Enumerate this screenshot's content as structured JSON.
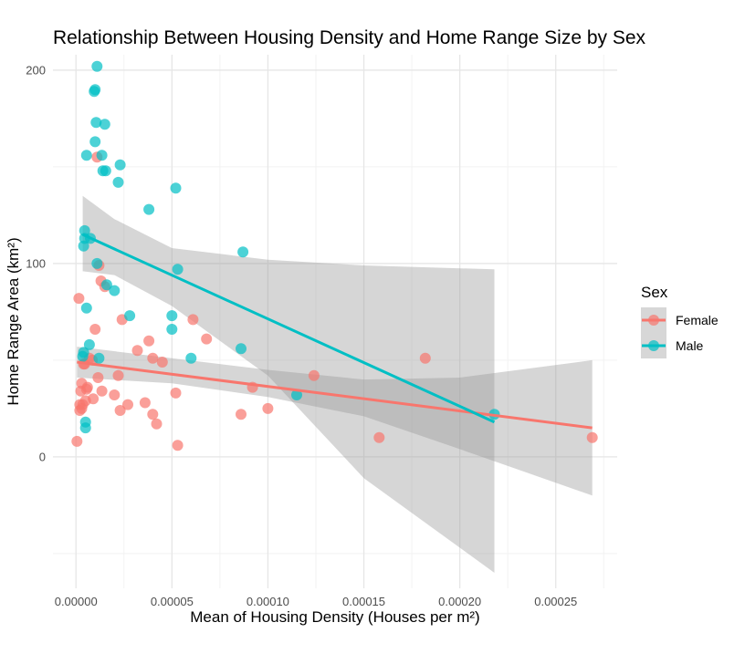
{
  "chart_data": {
    "type": "scatter",
    "title": "Relationship Between Housing Density and Home Range Size by Sex",
    "xlabel": "Mean of Housing Density (Houses per m²)",
    "ylabel": "Home Range Area (km²)",
    "xlim": [
      -1.2e-05,
      0.000282
    ],
    "ylim": [
      -68,
      208
    ],
    "x_ticks": [
      0,
      5e-05,
      0.0001,
      0.00015,
      0.0002,
      0.00025
    ],
    "x_tick_labels": [
      "0.00000",
      "0.00005",
      "0.00010",
      "0.00015",
      "0.00020",
      "0.00025"
    ],
    "y_ticks": [
      0,
      100,
      200
    ],
    "y_tick_labels": [
      "0",
      "100",
      "200"
    ],
    "grid": true,
    "legend": {
      "title": "Sex",
      "position": "right"
    },
    "series": [
      {
        "name": "Female",
        "color": "#F8766D",
        "points": [
          [
            5e-07,
            8
          ],
          [
            1.5e-06,
            82
          ],
          [
            2e-06,
            27
          ],
          [
            2e-06,
            24
          ],
          [
            2.5e-06,
            34
          ],
          [
            3e-06,
            38
          ],
          [
            3e-06,
            25
          ],
          [
            3.5e-06,
            27
          ],
          [
            4e-06,
            48
          ],
          [
            4.5e-06,
            48
          ],
          [
            5e-06,
            29
          ],
          [
            5.5e-06,
            35
          ],
          [
            6e-06,
            36
          ],
          [
            7e-06,
            51
          ],
          [
            8.5e-06,
            50
          ],
          [
            9e-06,
            30
          ],
          [
            1e-05,
            66
          ],
          [
            1.1e-05,
            155
          ],
          [
            1.15e-05,
            41
          ],
          [
            1.2e-05,
            99
          ],
          [
            1.3e-05,
            91
          ],
          [
            1.35e-05,
            34
          ],
          [
            1.5e-05,
            88
          ],
          [
            2e-05,
            32
          ],
          [
            2.2e-05,
            42
          ],
          [
            2.3e-05,
            24
          ],
          [
            2.4e-05,
            71
          ],
          [
            2.7e-05,
            27
          ],
          [
            3.2e-05,
            55
          ],
          [
            3.6e-05,
            28
          ],
          [
            3.8e-05,
            60
          ],
          [
            4e-05,
            22
          ],
          [
            4e-05,
            51
          ],
          [
            4.2e-05,
            17
          ],
          [
            4.5e-05,
            49
          ],
          [
            5.2e-05,
            33
          ],
          [
            5.3e-05,
            6
          ],
          [
            6.1e-05,
            71
          ],
          [
            6.8e-05,
            61
          ],
          [
            8.6e-05,
            22
          ],
          [
            9.2e-05,
            36
          ],
          [
            0.0001,
            25
          ],
          [
            0.000124,
            42
          ],
          [
            0.000158,
            10
          ],
          [
            0.000182,
            51
          ],
          [
            0.000269,
            10
          ]
        ]
      },
      {
        "name": "Male",
        "color": "#00BFC4",
        "points": [
          [
            3.5e-06,
            52
          ],
          [
            4e-06,
            54
          ],
          [
            4e-06,
            109
          ],
          [
            4.5e-06,
            117
          ],
          [
            4.5e-06,
            113
          ],
          [
            5e-06,
            18
          ],
          [
            5e-06,
            15
          ],
          [
            5.5e-06,
            77
          ],
          [
            5.5e-06,
            156
          ],
          [
            7e-06,
            58
          ],
          [
            7.5e-06,
            113
          ],
          [
            9.5e-06,
            189
          ],
          [
            1e-05,
            190
          ],
          [
            1e-05,
            163
          ],
          [
            1.05e-05,
            173
          ],
          [
            1.1e-05,
            202
          ],
          [
            1.1e-05,
            100
          ],
          [
            1.2e-05,
            51
          ],
          [
            1.35e-05,
            156
          ],
          [
            1.4e-05,
            148
          ],
          [
            1.5e-05,
            172
          ],
          [
            1.55e-05,
            148
          ],
          [
            1.6e-05,
            89
          ],
          [
            2e-05,
            86
          ],
          [
            2.2e-05,
            142
          ],
          [
            2.3e-05,
            151
          ],
          [
            2.8e-05,
            73
          ],
          [
            3.8e-05,
            128
          ],
          [
            5e-05,
            73
          ],
          [
            5e-05,
            66
          ],
          [
            5.2e-05,
            139
          ],
          [
            5.3e-05,
            97
          ],
          [
            6e-05,
            51
          ],
          [
            8.6e-05,
            56
          ],
          [
            8.7e-05,
            106
          ],
          [
            0.000115,
            32
          ],
          [
            0.000218,
            22
          ]
        ]
      }
    ],
    "fits": [
      {
        "name": "Female",
        "color": "#F8766D",
        "x": [
          5e-07,
          0.000269
        ],
        "y": [
          49,
          15
        ],
        "ci_x": [
          5e-07,
          5e-05,
          0.0001,
          0.00015,
          0.0002,
          0.000269
        ],
        "ci_upper": [
          57,
          51,
          45,
          40,
          41,
          50
        ],
        "ci_lower": [
          41,
          38,
          31,
          21,
          4,
          -20
        ]
      },
      {
        "name": "Male",
        "color": "#00BFC4",
        "x": [
          3.5e-06,
          0.000218
        ],
        "y": [
          115,
          18
        ],
        "ci_x": [
          3.5e-06,
          2e-05,
          5e-05,
          0.0001,
          0.00015,
          0.000218
        ],
        "ci_upper": [
          135,
          123,
          108,
          102,
          99,
          97
        ],
        "ci_lower": [
          96,
          94,
          78,
          42,
          -11,
          -60
        ]
      }
    ]
  }
}
